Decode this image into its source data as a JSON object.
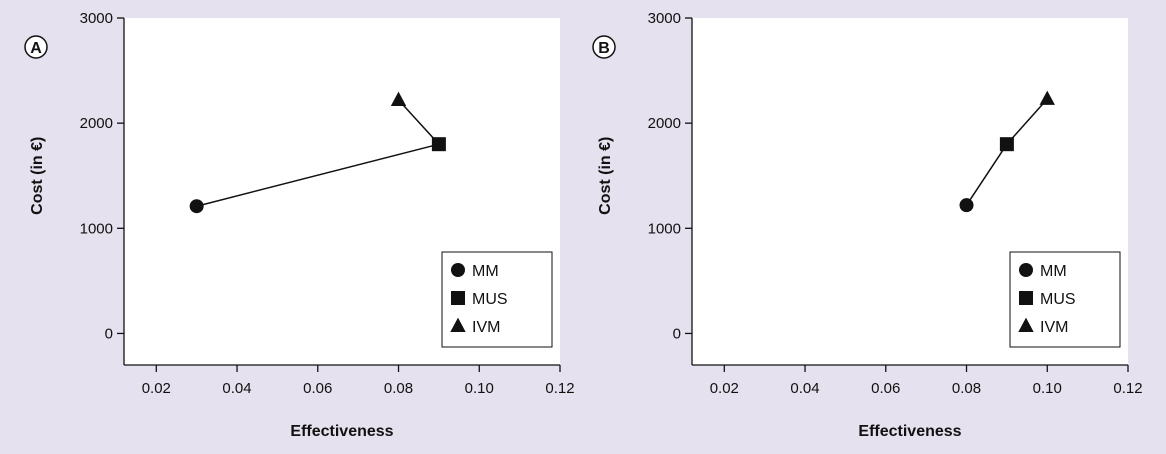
{
  "chart_data": [
    {
      "panel": "A",
      "type": "scatter",
      "xlabel": "Effectiveness",
      "ylabel": "Cost (in €)",
      "xlim": [
        0.012,
        0.12
      ],
      "ylim": [
        -300,
        3000
      ],
      "x_ticks": [
        0.02,
        0.04,
        0.06,
        0.08,
        0.1,
        0.12
      ],
      "x_tick_labels": [
        "0.02",
        "0.04",
        "0.06",
        "0.08",
        "0.10",
        "0.12"
      ],
      "y_ticks": [
        0,
        1000,
        2000,
        3000
      ],
      "y_tick_labels": [
        "0",
        "1000",
        "2000",
        "3000"
      ],
      "series": [
        {
          "name": "MM",
          "marker": "circle",
          "x": 0.03,
          "y": 1210
        },
        {
          "name": "MUS",
          "marker": "square",
          "x": 0.09,
          "y": 1800
        },
        {
          "name": "IVM",
          "marker": "triangle",
          "x": 0.08,
          "y": 2220
        }
      ],
      "connections": [
        [
          "MM",
          "MUS"
        ],
        [
          "MUS",
          "IVM"
        ]
      ],
      "legend_position": "bottom-right",
      "grid": false
    },
    {
      "panel": "B",
      "type": "scatter",
      "xlabel": "Effectiveness",
      "ylabel": "Cost (in €)",
      "xlim": [
        0.012,
        0.12
      ],
      "ylim": [
        -300,
        3000
      ],
      "x_ticks": [
        0.02,
        0.04,
        0.06,
        0.08,
        0.1,
        0.12
      ],
      "x_tick_labels": [
        "0.02",
        "0.04",
        "0.06",
        "0.08",
        "0.10",
        "0.12"
      ],
      "y_ticks": [
        0,
        1000,
        2000,
        3000
      ],
      "y_tick_labels": [
        "0",
        "1000",
        "2000",
        "3000"
      ],
      "series": [
        {
          "name": "MM",
          "marker": "circle",
          "x": 0.08,
          "y": 1220
        },
        {
          "name": "MUS",
          "marker": "square",
          "x": 0.09,
          "y": 1800
        },
        {
          "name": "IVM",
          "marker": "triangle",
          "x": 0.1,
          "y": 2230
        }
      ],
      "connections": [
        [
          "MM",
          "MUS"
        ],
        [
          "MUS",
          "IVM"
        ]
      ],
      "legend_position": "bottom-right",
      "grid": false
    }
  ],
  "colors": {
    "background": "#e6e1ef",
    "plot_area": "#ffffff",
    "ink": "#111111"
  }
}
